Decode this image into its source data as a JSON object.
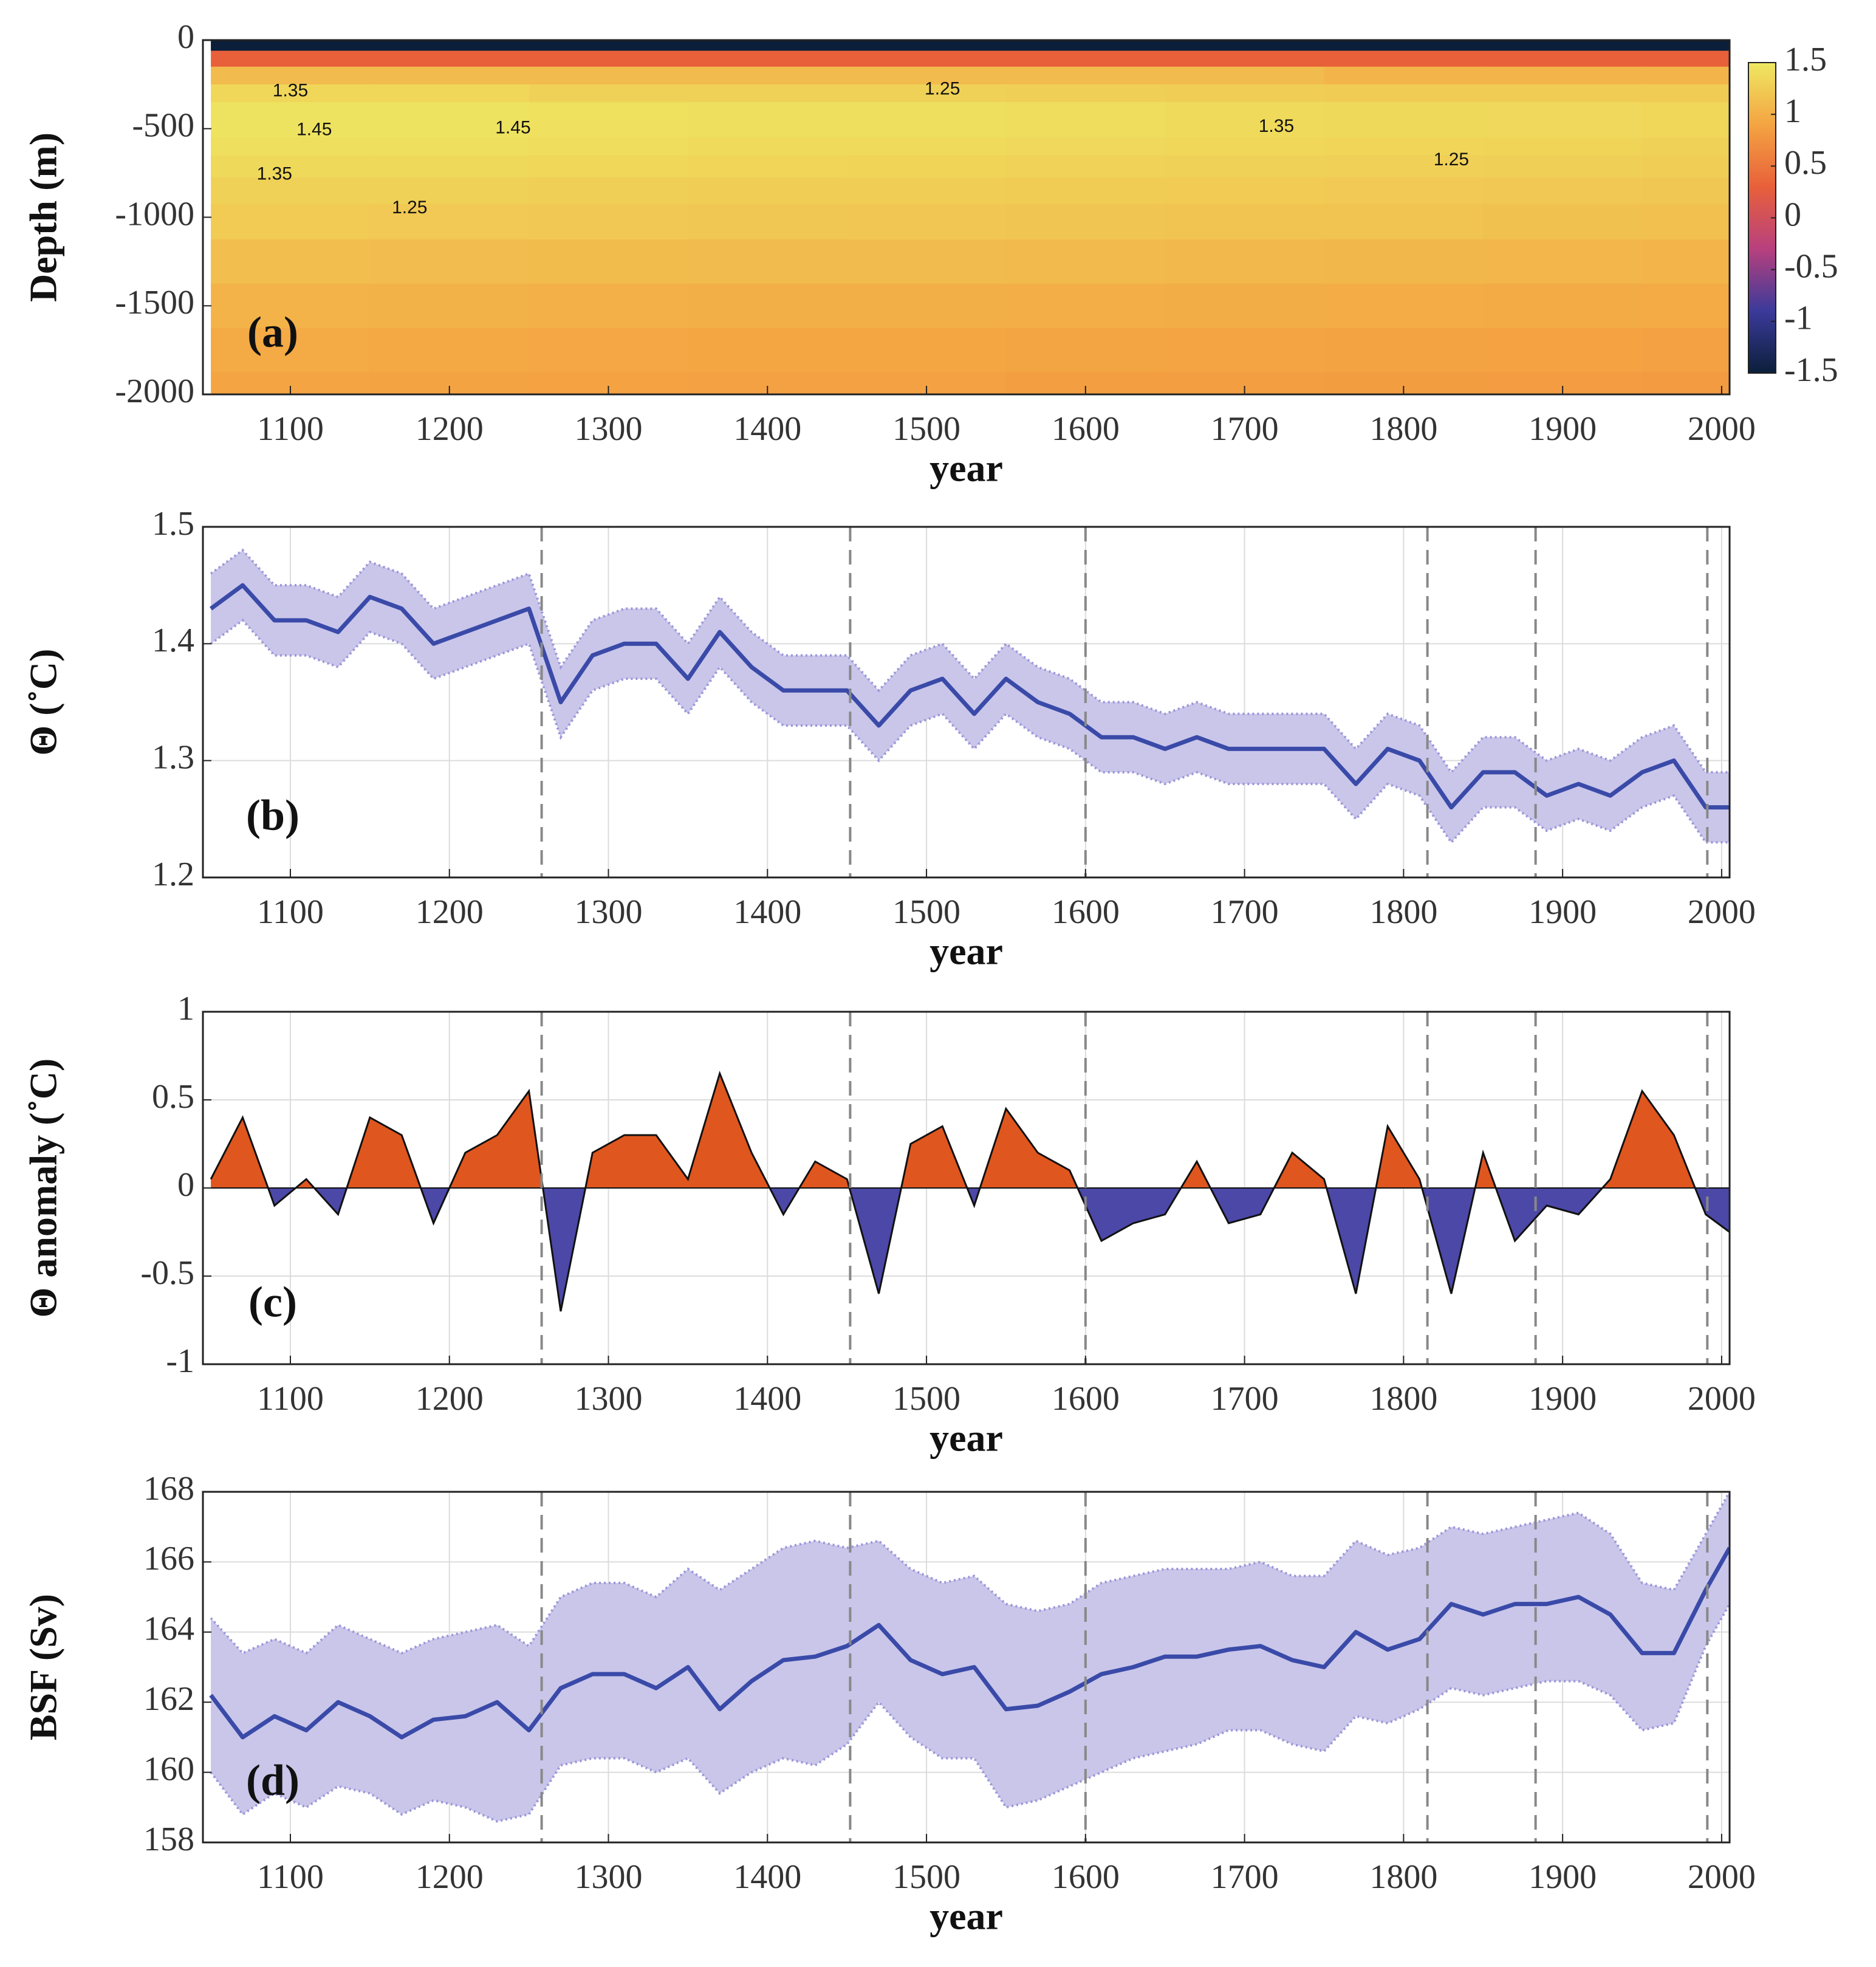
{
  "chart_data": [
    {
      "type": "heatmap",
      "label": "(a)",
      "xlabel": "year",
      "ylabel": "Depth (m)",
      "x": [
        1100,
        1200,
        1300,
        1400,
        1500,
        1600,
        1700,
        1800,
        1900,
        2000
      ],
      "depth": [
        -20,
        -100,
        -200,
        -300,
        -400,
        -500,
        -600,
        -700,
        -850,
        -1000,
        -1250,
        -1500,
        -1750,
        -2000
      ],
      "z": [
        [
          -1.5,
          -1.5,
          -1.5,
          -1.5,
          -1.5,
          -1.5,
          -1.5,
          -1.5,
          -1.5,
          -1.5
        ],
        [
          0.3,
          0.3,
          0.3,
          0.3,
          0.3,
          0.3,
          0.3,
          0.3,
          0.3,
          0.3
        ],
        [
          1.1,
          1.1,
          1.1,
          1.1,
          1.1,
          1.1,
          1.1,
          1.05,
          1.05,
          1.05
        ],
        [
          1.35,
          1.35,
          1.3,
          1.3,
          1.3,
          1.28,
          1.27,
          1.25,
          1.25,
          1.25
        ],
        [
          1.46,
          1.46,
          1.43,
          1.42,
          1.42,
          1.4,
          1.38,
          1.37,
          1.36,
          1.35
        ],
        [
          1.46,
          1.46,
          1.44,
          1.42,
          1.42,
          1.4,
          1.38,
          1.37,
          1.36,
          1.34
        ],
        [
          1.42,
          1.42,
          1.4,
          1.38,
          1.38,
          1.36,
          1.34,
          1.33,
          1.32,
          1.3
        ],
        [
          1.37,
          1.37,
          1.34,
          1.33,
          1.32,
          1.31,
          1.3,
          1.29,
          1.28,
          1.27
        ],
        [
          1.3,
          1.3,
          1.28,
          1.27,
          1.26,
          1.25,
          1.24,
          1.23,
          1.22,
          1.21
        ],
        [
          1.24,
          1.23,
          1.22,
          1.21,
          1.2,
          1.19,
          1.18,
          1.17,
          1.16,
          1.15
        ],
        [
          1.13,
          1.12,
          1.11,
          1.1,
          1.1,
          1.09,
          1.08,
          1.07,
          1.06,
          1.05
        ],
        [
          1.03,
          1.02,
          1.01,
          1.0,
          1.0,
          0.99,
          0.98,
          0.97,
          0.96,
          0.95
        ],
        [
          0.95,
          0.94,
          0.93,
          0.92,
          0.92,
          0.91,
          0.9,
          0.89,
          0.88,
          0.87
        ],
        [
          0.9,
          0.89,
          0.88,
          0.87,
          0.87,
          0.86,
          0.85,
          0.84,
          0.83,
          0.82
        ]
      ],
      "colormap": [
        "#0b1f3a",
        "#3b3a9a",
        "#b8407e",
        "#e8603a",
        "#f4a442",
        "#eee862"
      ],
      "clim": [
        -1.5,
        1.5
      ],
      "cticks": [
        1.5,
        1,
        0.5,
        0,
        -0.5,
        -1,
        -1.5
      ],
      "annotations": [
        {
          "text": "1.35",
          "x": 1100,
          "y": -290
        },
        {
          "text": "1.45",
          "x": 1115,
          "y": -510
        },
        {
          "text": "1.45",
          "x": 1240,
          "y": -500
        },
        {
          "text": "1.35",
          "x": 1090,
          "y": -760
        },
        {
          "text": "1.25",
          "x": 1175,
          "y": -950
        },
        {
          "text": "1.25",
          "x": 1510,
          "y": -280
        },
        {
          "text": "1.35",
          "x": 1720,
          "y": -490
        },
        {
          "text": "1.25",
          "x": 1830,
          "y": -680
        }
      ],
      "xlim": [
        1045,
        2005
      ],
      "xticks": [
        1100,
        1200,
        1300,
        1400,
        1500,
        1600,
        1700,
        1800,
        1900,
        2000
      ],
      "ylim": [
        -2000,
        0
      ],
      "yticks": [
        0,
        -500,
        -1000,
        -1500,
        -2000
      ],
      "grid": false
    },
    {
      "type": "line",
      "label": "(b)",
      "xlabel": "year",
      "ylabel": "Θ (˚C)",
      "x": [
        1050,
        1070,
        1090,
        1110,
        1130,
        1150,
        1170,
        1190,
        1210,
        1230,
        1250,
        1270,
        1290,
        1310,
        1330,
        1350,
        1370,
        1390,
        1410,
        1430,
        1450,
        1470,
        1490,
        1510,
        1530,
        1550,
        1570,
        1590,
        1610,
        1630,
        1650,
        1670,
        1690,
        1710,
        1730,
        1750,
        1770,
        1790,
        1810,
        1830,
        1850,
        1870,
        1890,
        1910,
        1930,
        1950,
        1970,
        1990,
        2005
      ],
      "values": [
        1.43,
        1.45,
        1.42,
        1.42,
        1.41,
        1.44,
        1.43,
        1.4,
        1.41,
        1.42,
        1.43,
        1.35,
        1.39,
        1.4,
        1.4,
        1.37,
        1.41,
        1.38,
        1.36,
        1.36,
        1.36,
        1.33,
        1.36,
        1.37,
        1.34,
        1.37,
        1.35,
        1.34,
        1.32,
        1.32,
        1.31,
        1.32,
        1.31,
        1.31,
        1.31,
        1.31,
        1.28,
        1.31,
        1.3,
        1.26,
        1.29,
        1.29,
        1.27,
        1.28,
        1.27,
        1.29,
        1.3,
        1.26,
        1.26
      ],
      "upper": [
        1.46,
        1.48,
        1.45,
        1.45,
        1.44,
        1.47,
        1.46,
        1.43,
        1.44,
        1.45,
        1.46,
        1.38,
        1.42,
        1.43,
        1.43,
        1.4,
        1.44,
        1.41,
        1.39,
        1.39,
        1.39,
        1.36,
        1.39,
        1.4,
        1.37,
        1.4,
        1.38,
        1.37,
        1.35,
        1.35,
        1.34,
        1.35,
        1.34,
        1.34,
        1.34,
        1.34,
        1.31,
        1.34,
        1.33,
        1.29,
        1.32,
        1.32,
        1.3,
        1.31,
        1.3,
        1.32,
        1.33,
        1.29,
        1.29
      ],
      "lower": [
        1.4,
        1.42,
        1.39,
        1.39,
        1.38,
        1.41,
        1.4,
        1.37,
        1.38,
        1.39,
        1.4,
        1.32,
        1.36,
        1.37,
        1.37,
        1.34,
        1.38,
        1.35,
        1.33,
        1.33,
        1.33,
        1.3,
        1.33,
        1.34,
        1.31,
        1.34,
        1.32,
        1.31,
        1.29,
        1.29,
        1.28,
        1.29,
        1.28,
        1.28,
        1.28,
        1.28,
        1.25,
        1.28,
        1.27,
        1.23,
        1.26,
        1.26,
        1.24,
        1.25,
        1.24,
        1.26,
        1.27,
        1.23,
        1.23
      ],
      "color": "#3a4aa8",
      "band_color": "#c9c6ea",
      "band_edge": "#9a96d8",
      "vlines": [
        1258,
        1452,
        1600,
        1815,
        1883,
        1991
      ],
      "xlim": [
        1045,
        2005
      ],
      "xticks": [
        1100,
        1200,
        1300,
        1400,
        1500,
        1600,
        1700,
        1800,
        1900,
        2000
      ],
      "ylim": [
        1.2,
        1.5
      ],
      "yticks": [
        1.2,
        1.3,
        1.4,
        1.5
      ],
      "grid": true
    },
    {
      "type": "area",
      "label": "(c)",
      "xlabel": "year",
      "ylabel": "Θ anomaly (˚C)",
      "x": [
        1050,
        1070,
        1090,
        1110,
        1130,
        1150,
        1170,
        1190,
        1210,
        1230,
        1250,
        1270,
        1290,
        1310,
        1330,
        1350,
        1370,
        1390,
        1410,
        1430,
        1450,
        1470,
        1490,
        1510,
        1530,
        1550,
        1570,
        1590,
        1610,
        1630,
        1650,
        1670,
        1690,
        1710,
        1730,
        1750,
        1770,
        1790,
        1810,
        1830,
        1850,
        1870,
        1890,
        1910,
        1930,
        1950,
        1970,
        1990,
        2005
      ],
      "values": [
        0.05,
        0.4,
        -0.1,
        0.05,
        -0.15,
        0.4,
        0.3,
        -0.2,
        0.2,
        0.3,
        0.55,
        -0.7,
        0.2,
        0.3,
        0.3,
        0.05,
        0.65,
        0.2,
        -0.15,
        0.15,
        0.05,
        -0.6,
        0.25,
        0.35,
        -0.1,
        0.45,
        0.2,
        0.1,
        -0.3,
        -0.2,
        -0.15,
        0.15,
        -0.2,
        -0.15,
        0.2,
        0.05,
        -0.6,
        0.35,
        0.05,
        -0.6,
        0.2,
        -0.3,
        -0.1,
        -0.15,
        0.05,
        0.55,
        0.3,
        -0.15,
        -0.25
      ],
      "pos_color": "#e0561f",
      "neg_color": "#4b48a8",
      "vlines": [
        1258,
        1452,
        1600,
        1815,
        1883,
        1991
      ],
      "xlim": [
        1045,
        2005
      ],
      "xticks": [
        1100,
        1200,
        1300,
        1400,
        1500,
        1600,
        1700,
        1800,
        1900,
        2000
      ],
      "ylim": [
        -1,
        1
      ],
      "yticks": [
        -1,
        -0.5,
        0,
        0.5,
        1
      ],
      "grid": true
    },
    {
      "type": "line",
      "label": "(d)",
      "xlabel": "year",
      "ylabel": "BSF (Sv)",
      "x": [
        1050,
        1070,
        1090,
        1110,
        1130,
        1150,
        1170,
        1190,
        1210,
        1230,
        1250,
        1270,
        1290,
        1310,
        1330,
        1350,
        1370,
        1390,
        1410,
        1430,
        1450,
        1470,
        1490,
        1510,
        1530,
        1550,
        1570,
        1590,
        1610,
        1630,
        1650,
        1670,
        1690,
        1710,
        1730,
        1750,
        1770,
        1790,
        1810,
        1830,
        1850,
        1870,
        1890,
        1910,
        1930,
        1950,
        1970,
        1990,
        2005
      ],
      "values": [
        162.2,
        161.0,
        161.6,
        161.2,
        162.0,
        161.6,
        161.0,
        161.5,
        161.6,
        162.0,
        161.2,
        162.4,
        162.8,
        162.8,
        162.4,
        163.0,
        161.8,
        162.6,
        163.2,
        163.3,
        163.6,
        164.2,
        163.2,
        162.8,
        163.0,
        161.8,
        161.9,
        162.3,
        162.8,
        163.0,
        163.3,
        163.3,
        163.5,
        163.6,
        163.2,
        163.0,
        164.0,
        163.5,
        163.8,
        164.8,
        164.5,
        164.8,
        164.8,
        165.0,
        164.5,
        163.4,
        163.4,
        165.2,
        166.4
      ],
      "upper": [
        164.4,
        163.4,
        163.8,
        163.4,
        164.2,
        163.8,
        163.4,
        163.8,
        164.0,
        164.2,
        163.6,
        165.0,
        165.4,
        165.4,
        165.0,
        165.8,
        165.2,
        165.8,
        166.4,
        166.6,
        166.4,
        166.6,
        165.8,
        165.4,
        165.6,
        164.8,
        164.6,
        164.8,
        165.4,
        165.6,
        165.8,
        165.8,
        165.8,
        166.0,
        165.6,
        165.6,
        166.6,
        166.2,
        166.4,
        167.0,
        166.8,
        167.0,
        167.2,
        167.4,
        166.8,
        165.4,
        165.2,
        166.8,
        168.0
      ],
      "lower": [
        160.0,
        158.8,
        159.4,
        159.0,
        159.6,
        159.4,
        158.8,
        159.2,
        159.0,
        158.6,
        158.8,
        160.2,
        160.4,
        160.4,
        160.0,
        160.4,
        159.4,
        160.0,
        160.4,
        160.2,
        160.8,
        162.0,
        161.0,
        160.4,
        160.4,
        159.0,
        159.2,
        159.6,
        160.0,
        160.4,
        160.6,
        160.8,
        161.2,
        161.2,
        160.8,
        160.6,
        161.6,
        161.4,
        161.8,
        162.4,
        162.2,
        162.4,
        162.6,
        162.6,
        162.2,
        161.2,
        161.4,
        163.6,
        164.8
      ],
      "color": "#3a4aa8",
      "band_color": "#c9c6ea",
      "band_edge": "#9a96d8",
      "vlines": [
        1258,
        1452,
        1600,
        1815,
        1883,
        1991
      ],
      "xlim": [
        1045,
        2005
      ],
      "xticks": [
        1100,
        1200,
        1300,
        1400,
        1500,
        1600,
        1700,
        1800,
        1900,
        2000
      ],
      "ylim": [
        158,
        168
      ],
      "yticks": [
        158,
        160,
        162,
        164,
        166,
        168
      ],
      "grid": true
    }
  ]
}
